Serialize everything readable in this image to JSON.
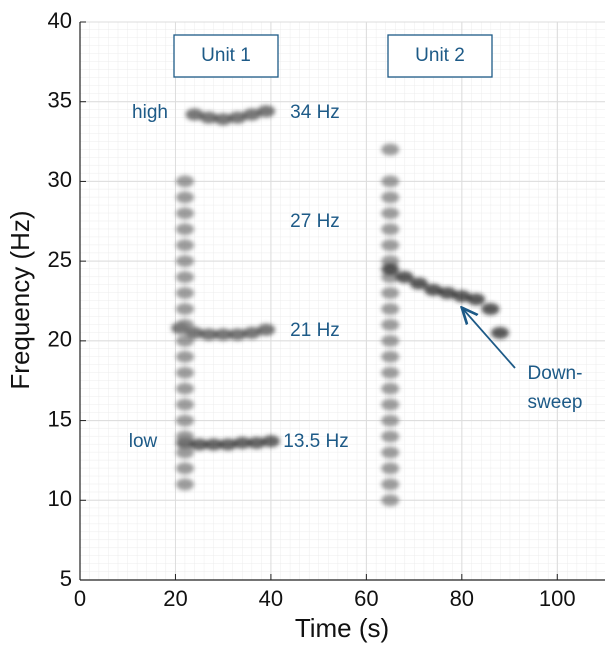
{
  "chart_data": {
    "type": "spectrogram",
    "xlabel": "Time (s)",
    "ylabel": "Frequency (Hz)",
    "xlim": [
      0,
      110
    ],
    "xticks": [
      0,
      20,
      40,
      60,
      80,
      100
    ],
    "ylim": [
      5,
      40
    ],
    "yticks": [
      5,
      10,
      15,
      20,
      25,
      30,
      35,
      40
    ],
    "grid": true,
    "annotations": [
      "Unit 1",
      "Unit 2",
      "high",
      "34 Hz",
      "27 Hz",
      "21 Hz",
      "low",
      "13.5 Hz",
      "Down-",
      "sweep"
    ],
    "series": [
      {
        "color": "#4a4a4a",
        "x": [
          24,
          27,
          30,
          33,
          36,
          39
        ],
        "values": [
          34.2,
          34.0,
          33.9,
          34.0,
          34.2,
          34.4
        ]
      },
      {
        "color": "#4a4a4a",
        "x": [
          21,
          24,
          27,
          30,
          33,
          36,
          39
        ],
        "values": [
          20.8,
          20.5,
          20.4,
          20.4,
          20.4,
          20.5,
          20.7
        ]
      },
      {
        "color": "#333333",
        "x": [
          22,
          25,
          28,
          31,
          34,
          37,
          40
        ],
        "values": [
          13.6,
          13.5,
          13.5,
          13.5,
          13.6,
          13.6,
          13.7
        ]
      },
      {
        "color": "#7a7a7a",
        "x": [
          22,
          22,
          22,
          22,
          22,
          22,
          22,
          22,
          22,
          22,
          22,
          22,
          22,
          22,
          22,
          22,
          22,
          22,
          22,
          22
        ],
        "values": [
          11,
          12,
          13,
          14,
          15,
          16,
          17,
          18,
          19,
          20,
          21,
          22,
          23,
          24,
          25,
          26,
          27,
          28,
          29,
          30
        ]
      },
      {
        "color": "#7a7a7a",
        "x": [
          65,
          65,
          65,
          65,
          65,
          65,
          65,
          65,
          65,
          65,
          65,
          65,
          65,
          65,
          65,
          65,
          65,
          65,
          65,
          65,
          65,
          65
        ],
        "values": [
          10,
          11,
          12,
          13,
          14,
          15,
          16,
          17,
          18,
          19,
          20,
          21,
          22,
          23,
          24,
          25,
          26,
          27,
          28,
          29,
          30,
          32
        ]
      },
      {
        "color": "#222222",
        "x": [
          65,
          68,
          71,
          74,
          77,
          80,
          83,
          86,
          88
        ],
        "values": [
          24.5,
          24.0,
          23.6,
          23.2,
          23.0,
          22.8,
          22.6,
          22.0,
          20.5
        ]
      }
    ]
  }
}
